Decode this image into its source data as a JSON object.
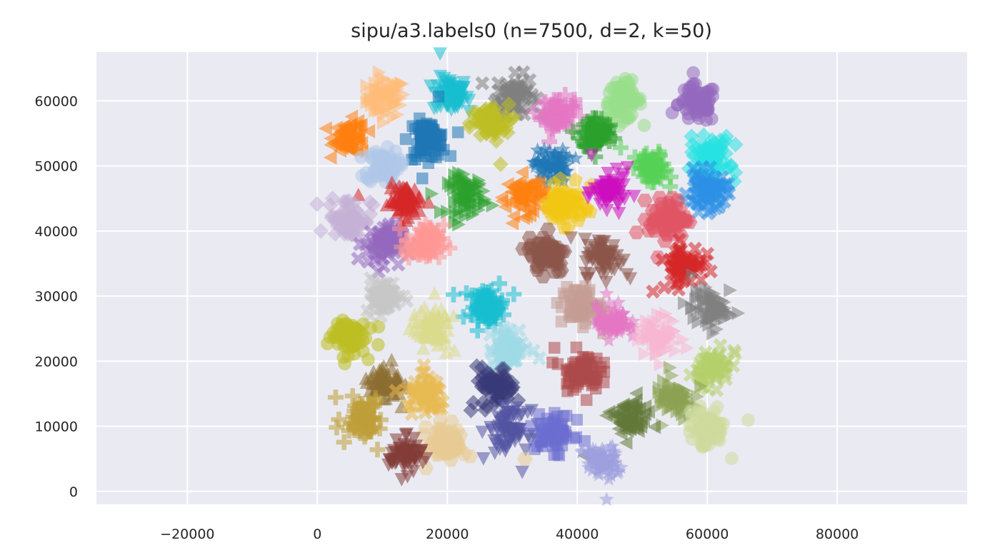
{
  "chart_data": {
    "type": "scatter",
    "title": "sipu/a3.labels0 (n=7500, d=2, k=50)",
    "xlabel": "",
    "ylabel": "",
    "xlim": [
      -34000,
      100000
    ],
    "ylim": [
      -2000,
      67500
    ],
    "xticks": [
      -20000,
      0,
      20000,
      40000,
      60000,
      80000
    ],
    "yticks": [
      0,
      10000,
      20000,
      30000,
      40000,
      50000,
      60000
    ],
    "xtick_labels": [
      "−20000",
      "0",
      "20000",
      "40000",
      "60000",
      "80000"
    ],
    "ytick_labels": [
      "0",
      "10000",
      "20000",
      "30000",
      "40000",
      "50000",
      "60000"
    ],
    "grid": true,
    "background": "#eaeaf2",
    "marker_alpha": 0.55,
    "clusters": [
      {
        "center": [
          10500,
          60500
        ],
        "radius": 3500,
        "marker": "tri-right",
        "color": "#ffbb78"
      },
      {
        "center": [
          20500,
          61000
        ],
        "radius": 3200,
        "marker": "tri-down",
        "color": "#17becf"
      },
      {
        "center": [
          30500,
          61000
        ],
        "radius": 3500,
        "marker": "x",
        "color": "#7f7f7f"
      },
      {
        "center": [
          37000,
          58000
        ],
        "radius": 3000,
        "marker": "plus",
        "color": "#e377c2"
      },
      {
        "center": [
          47000,
          60000
        ],
        "radius": 3500,
        "marker": "circle",
        "color": "#98df8a"
      },
      {
        "center": [
          58500,
          59500
        ],
        "radius": 3500,
        "marker": "circle",
        "color": "#9467bd"
      },
      {
        "center": [
          5000,
          54500
        ],
        "radius": 3000,
        "marker": "tri-left",
        "color": "#ff7f0e"
      },
      {
        "center": [
          17000,
          54000
        ],
        "radius": 3500,
        "marker": "square",
        "color": "#1f77b4"
      },
      {
        "center": [
          26500,
          56500
        ],
        "radius": 3500,
        "marker": "diamond",
        "color": "#bcbd22"
      },
      {
        "center": [
          43000,
          55000
        ],
        "radius": 3000,
        "marker": "plus",
        "color": "#2ca02c"
      },
      {
        "center": [
          10000,
          50000
        ],
        "radius": 3000,
        "marker": "circle",
        "color": "#aec7e8"
      },
      {
        "center": [
          36000,
          50000
        ],
        "radius": 3000,
        "marker": "star",
        "color": "#1f77b4"
      },
      {
        "center": [
          51500,
          49500
        ],
        "radius": 3000,
        "marker": "plus",
        "color": "#56d156"
      },
      {
        "center": [
          60500,
          51500
        ],
        "radius": 3500,
        "marker": "diamond",
        "color": "#26e2e2"
      },
      {
        "center": [
          13500,
          44500
        ],
        "radius": 3000,
        "marker": "tri-up",
        "color": "#d62728"
      },
      {
        "center": [
          23000,
          45500
        ],
        "radius": 3500,
        "marker": "tri-right",
        "color": "#2ca02c"
      },
      {
        "center": [
          32000,
          45500
        ],
        "radius": 3500,
        "marker": "tri-left",
        "color": "#ff7f0e"
      },
      {
        "center": [
          38000,
          44000
        ],
        "radius": 3500,
        "marker": "pentagon",
        "color": "#f2c612"
      },
      {
        "center": [
          45000,
          46000
        ],
        "radius": 3000,
        "marker": "tri-down",
        "color": "#cc0fbe"
      },
      {
        "center": [
          60000,
          46000
        ],
        "radius": 3500,
        "marker": "x",
        "color": "#2b8fe6"
      },
      {
        "center": [
          5000,
          42000
        ],
        "radius": 4000,
        "marker": "diamond",
        "color": "#c5b0d5"
      },
      {
        "center": [
          10000,
          38000
        ],
        "radius": 3500,
        "marker": "x",
        "color": "#9467bd"
      },
      {
        "center": [
          16500,
          38000
        ],
        "radius": 3500,
        "marker": "plus",
        "color": "#ff9896"
      },
      {
        "center": [
          54000,
          42000
        ],
        "radius": 3500,
        "marker": "hexagon",
        "color": "#e05365"
      },
      {
        "center": [
          35500,
          36500
        ],
        "radius": 3500,
        "marker": "hexagon",
        "color": "#8c564b"
      },
      {
        "center": [
          44000,
          36000
        ],
        "radius": 3500,
        "marker": "tri-down",
        "color": "#8c564b"
      },
      {
        "center": [
          56500,
          35000
        ],
        "radius": 3500,
        "marker": "x",
        "color": "#d62728"
      },
      {
        "center": [
          10000,
          30000
        ],
        "radius": 3000,
        "marker": "x",
        "color": "#c7c7c7"
      },
      {
        "center": [
          26000,
          28500
        ],
        "radius": 3000,
        "marker": "plus",
        "color": "#17becf"
      },
      {
        "center": [
          40500,
          28500
        ],
        "radius": 3500,
        "marker": "square",
        "color": "#c49c94"
      },
      {
        "center": [
          60500,
          28000
        ],
        "radius": 3500,
        "marker": "tri-right",
        "color": "#7f7f7f"
      },
      {
        "center": [
          4500,
          24000
        ],
        "radius": 3500,
        "marker": "circle",
        "color": "#bcbd22"
      },
      {
        "center": [
          17500,
          25000
        ],
        "radius": 3500,
        "marker": "tri-up",
        "color": "#dbdb8d"
      },
      {
        "center": [
          45500,
          26000
        ],
        "radius": 3000,
        "marker": "star",
        "color": "#e377c2"
      },
      {
        "center": [
          52500,
          24000
        ],
        "radius": 3500,
        "marker": "tri-right",
        "color": "#f7b6d2"
      },
      {
        "center": [
          29500,
          22000
        ],
        "radius": 3500,
        "marker": "x",
        "color": "#9edae5"
      },
      {
        "center": [
          40500,
          18500
        ],
        "radius": 3500,
        "marker": "square",
        "color": "#ad494a"
      },
      {
        "center": [
          10500,
          16500
        ],
        "radius": 3000,
        "marker": "tri-up",
        "color": "#8c6d31"
      },
      {
        "center": [
          27500,
          16000
        ],
        "radius": 3500,
        "marker": "diamond",
        "color": "#393b79"
      },
      {
        "center": [
          61000,
          19000
        ],
        "radius": 3000,
        "marker": "x",
        "color": "#b5cf6b"
      },
      {
        "center": [
          17000,
          14500
        ],
        "radius": 3500,
        "marker": "x",
        "color": "#e7ba52"
      },
      {
        "center": [
          55000,
          14000
        ],
        "radius": 3500,
        "marker": "tri-right",
        "color": "#8ca252"
      },
      {
        "center": [
          7000,
          11500
        ],
        "radius": 3500,
        "marker": "plus",
        "color": "#bd9e39"
      },
      {
        "center": [
          29500,
          9500
        ],
        "radius": 3500,
        "marker": "tri-down",
        "color": "#5254a3"
      },
      {
        "center": [
          36500,
          9000
        ],
        "radius": 3500,
        "marker": "square",
        "color": "#6b6ecf"
      },
      {
        "center": [
          48000,
          11000
        ],
        "radius": 3500,
        "marker": "tri-left",
        "color": "#637939"
      },
      {
        "center": [
          60000,
          9500
        ],
        "radius": 3500,
        "marker": "circle",
        "color": "#cedb9c"
      },
      {
        "center": [
          20000,
          7500
        ],
        "radius": 3500,
        "marker": "hexagon",
        "color": "#e7cb94"
      },
      {
        "center": [
          13500,
          5500
        ],
        "radius": 3000,
        "marker": "tri-down",
        "color": "#843c39"
      },
      {
        "center": [
          43500,
          4500
        ],
        "radius": 3000,
        "marker": "star",
        "color": "#9c9ede"
      }
    ]
  }
}
